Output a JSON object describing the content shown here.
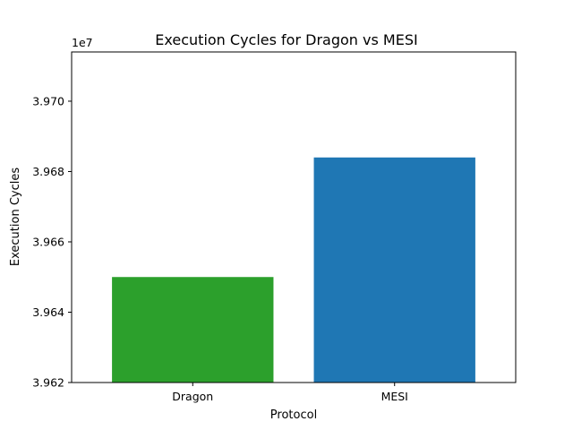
{
  "chart_data": {
    "type": "bar",
    "title": "Execution Cycles for Dragon vs MESI",
    "xlabel": "Protocol",
    "ylabel": "Execution Cycles",
    "offset_label": "1e7",
    "categories": [
      "Dragon",
      "MESI"
    ],
    "values": [
      39650000,
      39684000
    ],
    "colors": [
      "#2ca02c",
      "#1f77b4"
    ],
    "ylim": [
      39620000,
      39714000
    ],
    "yticks": [
      39620000,
      39640000,
      39660000,
      39680000,
      39700000
    ],
    "ytick_labels": [
      "3.962",
      "3.964",
      "3.966",
      "3.968",
      "3.970"
    ],
    "grid": false,
    "legend": "none"
  }
}
